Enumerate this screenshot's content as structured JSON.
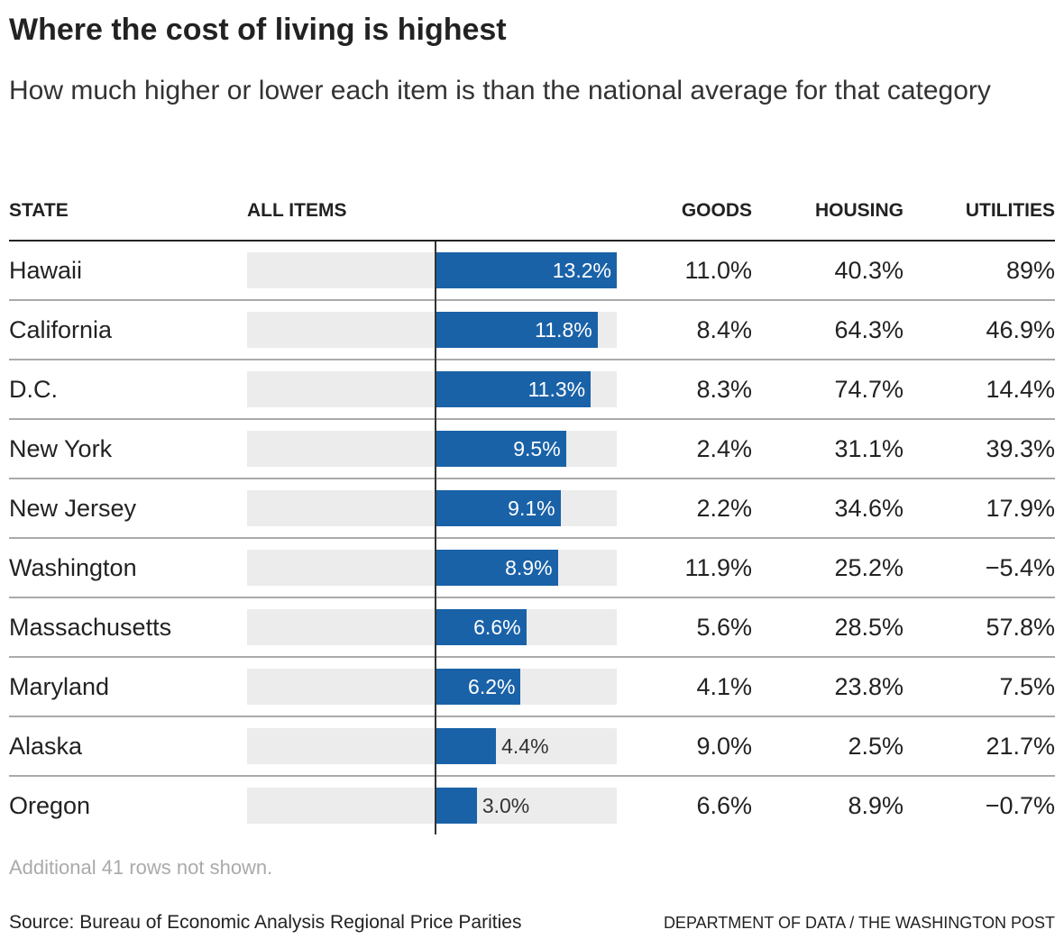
{
  "title": "Where the cost of living is highest",
  "subtitle": "How much higher or lower each item is than the national average for that category",
  "columns": {
    "state": "STATE",
    "all_items": "ALL ITEMS",
    "goods": "GOODS",
    "housing": "HOUSING",
    "utilities": "UTILITIES"
  },
  "colors": {
    "bar": "#1a62a8",
    "bar_background": "#ececec"
  },
  "chart_data": {
    "type": "table",
    "bar_column": "ALL ITEMS",
    "xlim": [
      -13.75,
      13.2
    ],
    "rows": [
      {
        "state": "Hawaii",
        "all_items": 13.2,
        "all_items_label": "13.2%",
        "goods": "11.0%",
        "housing": "40.3%",
        "utilities": "89%"
      },
      {
        "state": "California",
        "all_items": 11.8,
        "all_items_label": "11.8%",
        "goods": "8.4%",
        "housing": "64.3%",
        "utilities": "46.9%"
      },
      {
        "state": "D.C.",
        "all_items": 11.3,
        "all_items_label": "11.3%",
        "goods": "8.3%",
        "housing": "74.7%",
        "utilities": "14.4%"
      },
      {
        "state": "New York",
        "all_items": 9.5,
        "all_items_label": "9.5%",
        "goods": "2.4%",
        "housing": "31.1%",
        "utilities": "39.3%"
      },
      {
        "state": "New Jersey",
        "all_items": 9.1,
        "all_items_label": "9.1%",
        "goods": "2.2%",
        "housing": "34.6%",
        "utilities": "17.9%"
      },
      {
        "state": "Washington",
        "all_items": 8.9,
        "all_items_label": "8.9%",
        "goods": "11.9%",
        "housing": "25.2%",
        "utilities": "−5.4%"
      },
      {
        "state": "Massachusetts",
        "all_items": 6.6,
        "all_items_label": "6.6%",
        "goods": "5.6%",
        "housing": "28.5%",
        "utilities": "57.8%"
      },
      {
        "state": "Maryland",
        "all_items": 6.2,
        "all_items_label": "6.2%",
        "goods": "4.1%",
        "housing": "23.8%",
        "utilities": "7.5%"
      },
      {
        "state": "Alaska",
        "all_items": 4.4,
        "all_items_label": "4.4%",
        "goods": "9.0%",
        "housing": "2.5%",
        "utilities": "21.7%"
      },
      {
        "state": "Oregon",
        "all_items": 3.0,
        "all_items_label": "3.0%",
        "goods": "6.6%",
        "housing": "8.9%",
        "utilities": "−0.7%"
      }
    ]
  },
  "note": "Additional 41 rows not shown.",
  "source": "Source: Bureau of Economic Analysis Regional Price Parities",
  "credit": "DEPARTMENT OF DATA / THE WASHINGTON POST"
}
